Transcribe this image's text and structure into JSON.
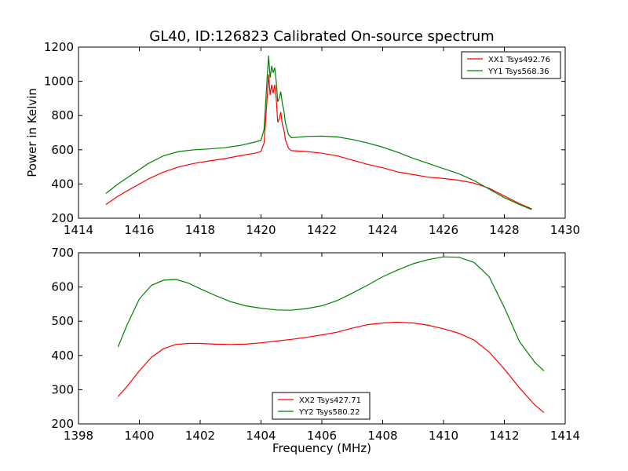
{
  "title": "GL40, ID:126823 Calibrated On-source spectrum",
  "colors": {
    "xx": "#ff0000",
    "yy": "#008000"
  },
  "chart_data": [
    {
      "type": "line",
      "xlabel": "",
      "ylabel": "Power in Kelvin",
      "xlim": [
        1414,
        1430
      ],
      "ylim": [
        200,
        1200
      ],
      "xticks": [
        1414,
        1416,
        1418,
        1420,
        1422,
        1424,
        1426,
        1428,
        1430
      ],
      "yticks": [
        200,
        400,
        600,
        800,
        1000,
        1200
      ],
      "legend_position": "top-right",
      "series": [
        {
          "name": "XX1 Tsys492.76",
          "color": "#ff0000",
          "x": [
            1414.9,
            1415.3,
            1415.8,
            1416.3,
            1416.8,
            1417.3,
            1417.8,
            1418.3,
            1418.8,
            1419.3,
            1419.8,
            1420.0,
            1420.1,
            1420.2,
            1420.25,
            1420.3,
            1420.35,
            1420.4,
            1420.45,
            1420.5,
            1420.55,
            1420.6,
            1420.65,
            1420.7,
            1420.75,
            1420.8,
            1420.9,
            1421.0,
            1421.5,
            1422.0,
            1422.5,
            1423.0,
            1423.5,
            1424.0,
            1424.5,
            1425.0,
            1425.5,
            1426.0,
            1426.5,
            1427.0,
            1427.5,
            1428.0,
            1428.5,
            1428.9
          ],
          "y": [
            280,
            330,
            380,
            430,
            470,
            500,
            520,
            535,
            548,
            565,
            580,
            590,
            640,
            900,
            1040,
            920,
            980,
            930,
            980,
            900,
            760,
            780,
            820,
            750,
            720,
            660,
            610,
            595,
            590,
            580,
            565,
            540,
            515,
            495,
            470,
            455,
            440,
            432,
            422,
            405,
            375,
            330,
            285,
            255
          ]
        },
        {
          "name": "YY1 Tsys568.36",
          "color": "#008000",
          "x": [
            1414.9,
            1415.3,
            1415.8,
            1416.3,
            1416.8,
            1417.3,
            1417.8,
            1418.3,
            1418.8,
            1419.3,
            1419.8,
            1420.0,
            1420.1,
            1420.2,
            1420.25,
            1420.3,
            1420.35,
            1420.4,
            1420.45,
            1420.5,
            1420.55,
            1420.6,
            1420.65,
            1420.7,
            1420.75,
            1420.8,
            1420.9,
            1421.0,
            1421.5,
            1422.0,
            1422.5,
            1423.0,
            1423.5,
            1424.0,
            1424.5,
            1425.0,
            1425.5,
            1426.0,
            1426.5,
            1427.0,
            1427.5,
            1428.0,
            1428.5,
            1428.9
          ],
          "y": [
            345,
            400,
            460,
            520,
            565,
            590,
            600,
            605,
            612,
            625,
            645,
            655,
            720,
            1020,
            1150,
            1020,
            1090,
            1050,
            1080,
            1000,
            880,
            900,
            940,
            870,
            830,
            760,
            690,
            670,
            678,
            680,
            675,
            660,
            640,
            615,
            585,
            550,
            520,
            490,
            460,
            420,
            370,
            320,
            280,
            250
          ]
        }
      ]
    },
    {
      "type": "line",
      "xlabel": "Frequency (MHz)",
      "ylabel": "",
      "xlim": [
        1398,
        1414
      ],
      "ylim": [
        200,
        700
      ],
      "xticks": [
        1398,
        1400,
        1402,
        1404,
        1406,
        1408,
        1410,
        1412,
        1414
      ],
      "yticks": [
        200,
        300,
        400,
        500,
        600,
        700
      ],
      "legend_position": "bottom-center",
      "series": [
        {
          "name": "XX2 Tsys427.71",
          "color": "#ff0000",
          "x": [
            1399.3,
            1399.6,
            1400.0,
            1400.4,
            1400.8,
            1401.2,
            1401.6,
            1402.0,
            1402.5,
            1403.0,
            1403.5,
            1404.0,
            1404.5,
            1405.0,
            1405.5,
            1406.0,
            1406.5,
            1407.0,
            1407.5,
            1408.0,
            1408.5,
            1409.0,
            1409.5,
            1410.0,
            1410.5,
            1411.0,
            1411.5,
            1412.0,
            1412.5,
            1413.0,
            1413.3
          ],
          "y": [
            280,
            310,
            355,
            395,
            420,
            432,
            435,
            435,
            433,
            432,
            433,
            437,
            442,
            447,
            453,
            460,
            468,
            480,
            490,
            495,
            497,
            495,
            488,
            478,
            465,
            445,
            410,
            360,
            305,
            255,
            233
          ]
        },
        {
          "name": "YY2 Tsys580.22",
          "color": "#008000",
          "x": [
            1399.3,
            1399.6,
            1400.0,
            1400.4,
            1400.8,
            1401.2,
            1401.6,
            1402.0,
            1402.5,
            1403.0,
            1403.5,
            1404.0,
            1404.5,
            1405.0,
            1405.5,
            1406.0,
            1406.5,
            1407.0,
            1407.5,
            1408.0,
            1408.5,
            1409.0,
            1409.5,
            1410.0,
            1410.5,
            1411.0,
            1411.5,
            1412.0,
            1412.5,
            1413.0,
            1413.3
          ],
          "y": [
            425,
            490,
            565,
            605,
            620,
            622,
            612,
            595,
            575,
            557,
            545,
            538,
            533,
            532,
            537,
            545,
            560,
            582,
            605,
            630,
            650,
            668,
            680,
            688,
            687,
            672,
            630,
            540,
            440,
            380,
            355
          ]
        }
      ]
    }
  ]
}
